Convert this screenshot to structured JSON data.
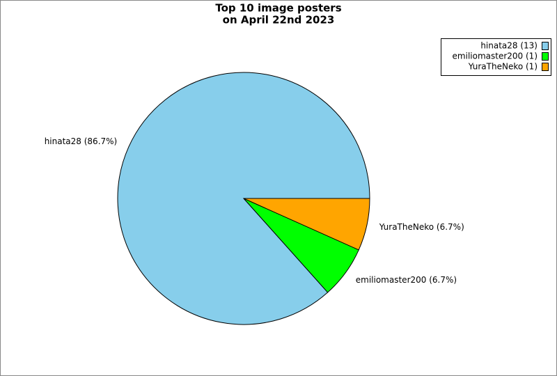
{
  "chart_data": {
    "type": "pie",
    "title": [
      "Top 10 image posters",
      "on April 22nd 2023"
    ],
    "categories": [
      "hinata28 (13)",
      "emiliomaster200 (1)",
      "YuraTheNeko (1)"
    ],
    "values": [
      86.7,
      6.7,
      6.7
    ],
    "value_labels": [
      "hinata28 (86.7%)",
      "emiliomaster200 (6.7%)",
      "YuraTheNeko (6.7%)"
    ],
    "colors": [
      "#87ceeb",
      "#00ff00",
      "#ffa500"
    ],
    "legend": "upper right"
  }
}
